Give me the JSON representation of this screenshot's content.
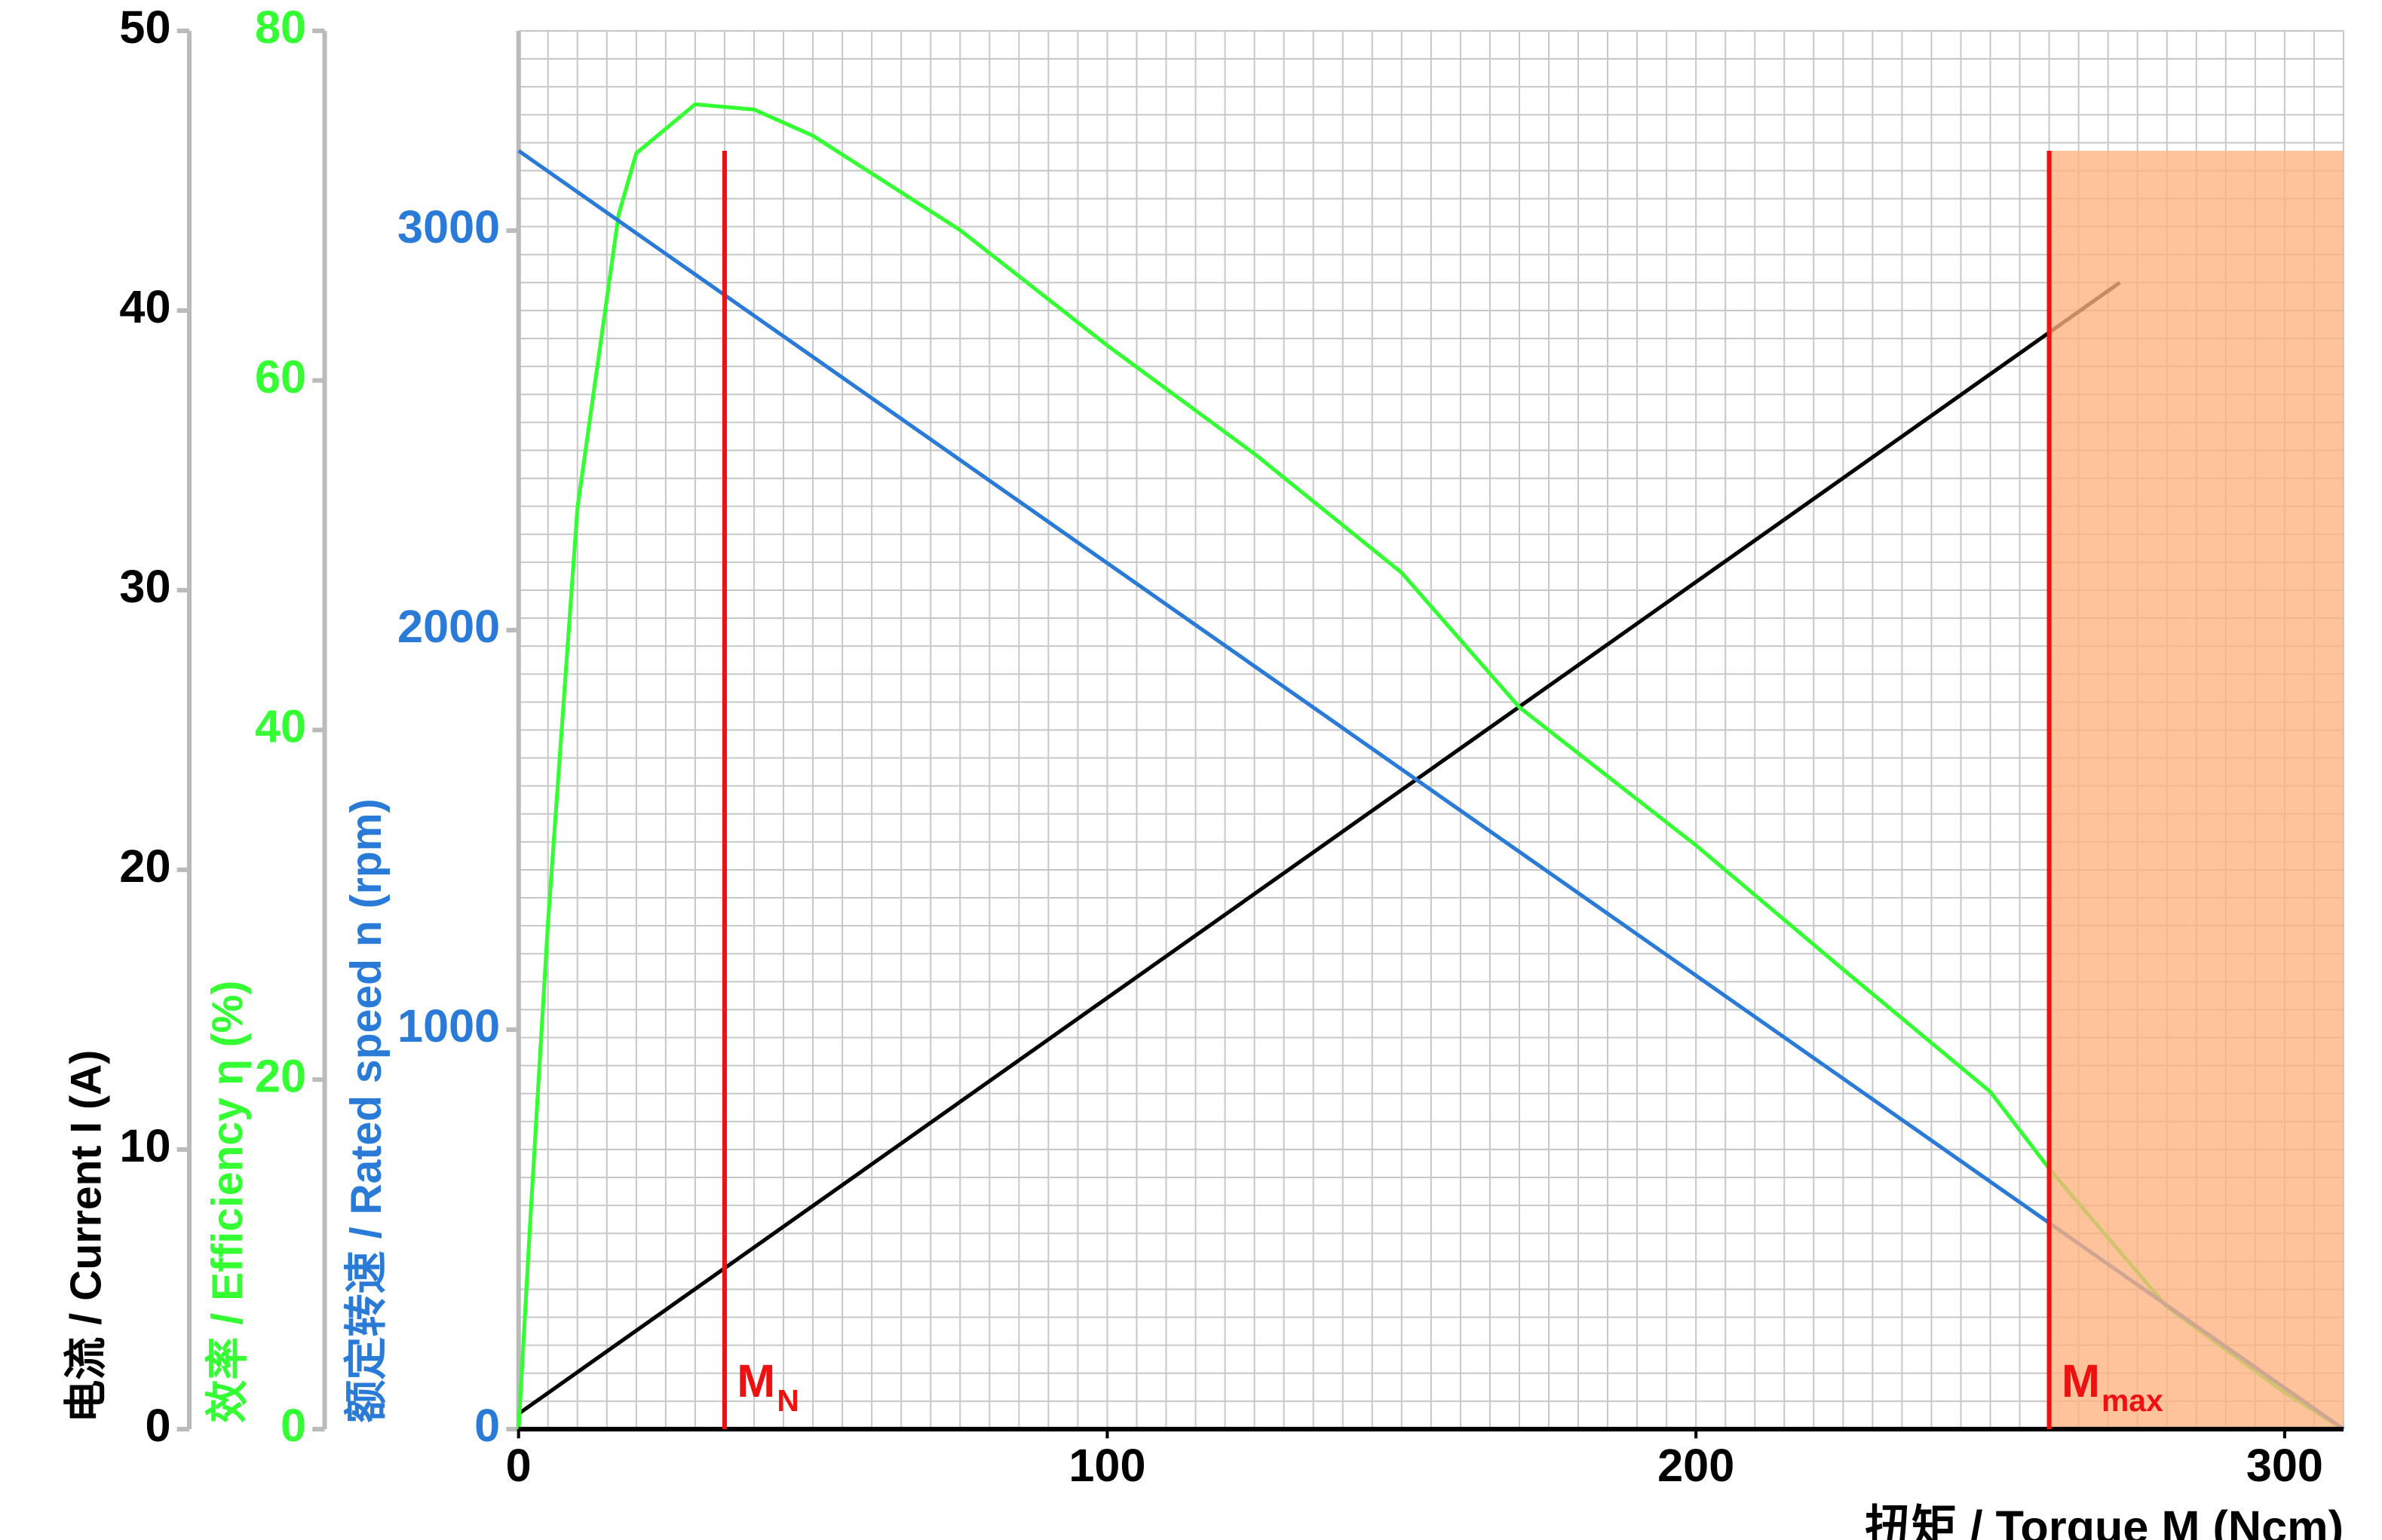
{
  "chart_data": {
    "type": "line",
    "xlabel": "扭矩 / Torque M (Ncm)",
    "xlim": [
      0,
      310
    ],
    "xticks": [
      0,
      100,
      200,
      300
    ],
    "ylabel": "电流 / Current I (A)",
    "ylim": [
      0,
      50
    ],
    "yticks": [
      0,
      10,
      20,
      30,
      40,
      50
    ],
    "ycolor": "#000000",
    "y2label": "效率 / Efficiency η  (%)",
    "y2lim": [
      0,
      80
    ],
    "y2ticks": [
      0,
      20,
      40,
      60,
      80
    ],
    "y2color": "#33ff33",
    "y3label": "额定转速 / Rated speed n (rpm)",
    "y3lim": [
      0,
      3500
    ],
    "y3ticks": [
      0,
      1000,
      2000,
      3000
    ],
    "y3color": "#2a7ad8",
    "grid": true,
    "xgrid_step": 5,
    "ygrid_step": 1,
    "series": [
      {
        "axis": "y",
        "color": "#000000",
        "x": [
          0,
          272
        ],
        "values": [
          0.55,
          41
        ]
      },
      {
        "axis": "y2",
        "color": "#33ff33",
        "x": [
          0,
          2,
          5,
          10,
          17,
          20,
          30,
          40,
          50,
          75,
          100,
          125,
          150,
          170,
          200,
          225,
          250,
          260,
          280,
          300,
          310
        ],
        "values": [
          0,
          12,
          29,
          52.7,
          69.5,
          73,
          75.8,
          75.5,
          74,
          68.6,
          62,
          55.8,
          49,
          41.3,
          33.4,
          26.3,
          19.3,
          14.9,
          7,
          2.1,
          0
        ]
      },
      {
        "axis": "y3",
        "color": "#2a7ad8",
        "x": [
          0,
          310
        ],
        "values": [
          3200,
          0
        ]
      }
    ],
    "markers": [
      {
        "x": 35,
        "label": "M",
        "sub": "N"
      },
      {
        "x": 260,
        "label": "M",
        "sub": "max"
      }
    ],
    "marker_color": "#ee1111",
    "region": {
      "from": 260,
      "to": 310,
      "top": 3200,
      "color": "#ffb27f"
    }
  }
}
